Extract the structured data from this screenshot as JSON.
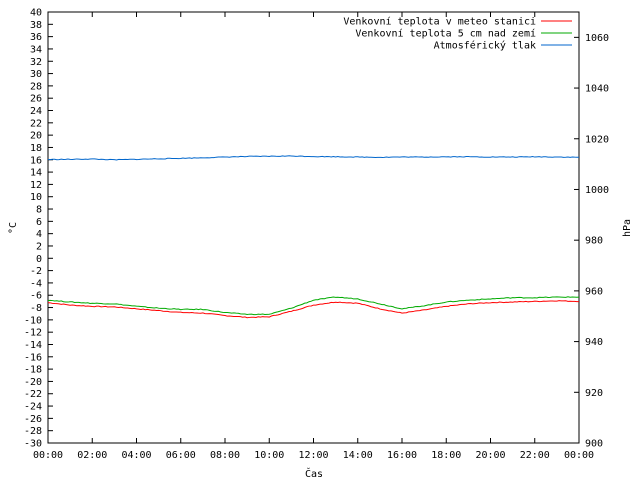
{
  "chart_data": {
    "type": "line",
    "xlabel": "Čas",
    "ylabel_left": "°C",
    "ylabel_right": "hPa",
    "x_ticks": [
      "00:00",
      "02:00",
      "04:00",
      "06:00",
      "08:00",
      "10:00",
      "12:00",
      "14:00",
      "16:00",
      "18:00",
      "20:00",
      "22:00",
      "00:00"
    ],
    "x_hours": [
      0,
      1,
      2,
      3,
      4,
      5,
      6,
      7,
      8,
      9,
      10,
      11,
      12,
      13,
      14,
      15,
      16,
      17,
      18,
      19,
      20,
      21,
      22,
      23,
      24
    ],
    "ylim_left": [
      -30,
      40
    ],
    "y_left_step": 2,
    "ylim_right": [
      900,
      1070
    ],
    "y_right_ticks": [
      900,
      920,
      940,
      960,
      980,
      1000,
      1020,
      1040,
      1060
    ],
    "grid": false,
    "legend_position": "top-right",
    "series": [
      {
        "name": "Venkovní teplota v meteo stanici",
        "axis": "left",
        "color": "#ff0000",
        "values": [
          -7.2,
          -7.6,
          -7.8,
          -7.9,
          -8.2,
          -8.5,
          -8.8,
          -8.9,
          -9.3,
          -9.6,
          -9.5,
          -8.6,
          -7.6,
          -7.1,
          -7.3,
          -8.2,
          -8.9,
          -8.4,
          -7.8,
          -7.4,
          -7.2,
          -7.1,
          -7.0,
          -6.9,
          -7.0
        ]
      },
      {
        "name": "Venkovní teplota 5 cm nad zemí",
        "axis": "left",
        "color": "#00aa00",
        "values": [
          -6.8,
          -7.1,
          -7.3,
          -7.4,
          -7.8,
          -8.1,
          -8.3,
          -8.3,
          -8.8,
          -9.1,
          -9.1,
          -8.1,
          -6.8,
          -6.3,
          -6.6,
          -7.4,
          -8.2,
          -7.7,
          -7.1,
          -6.8,
          -6.6,
          -6.4,
          -6.4,
          -6.3,
          -6.3
        ]
      },
      {
        "name": "Atmosférický tlak",
        "axis": "right",
        "color": "#0066cc",
        "values": [
          1011.8,
          1011.9,
          1012.0,
          1011.7,
          1011.9,
          1012.1,
          1012.3,
          1012.5,
          1012.8,
          1013.0,
          1013.1,
          1013.2,
          1013.0,
          1012.9,
          1012.8,
          1012.7,
          1012.8,
          1012.8,
          1012.9,
          1012.9,
          1012.8,
          1012.8,
          1012.9,
          1012.8,
          1012.7
        ]
      }
    ]
  }
}
